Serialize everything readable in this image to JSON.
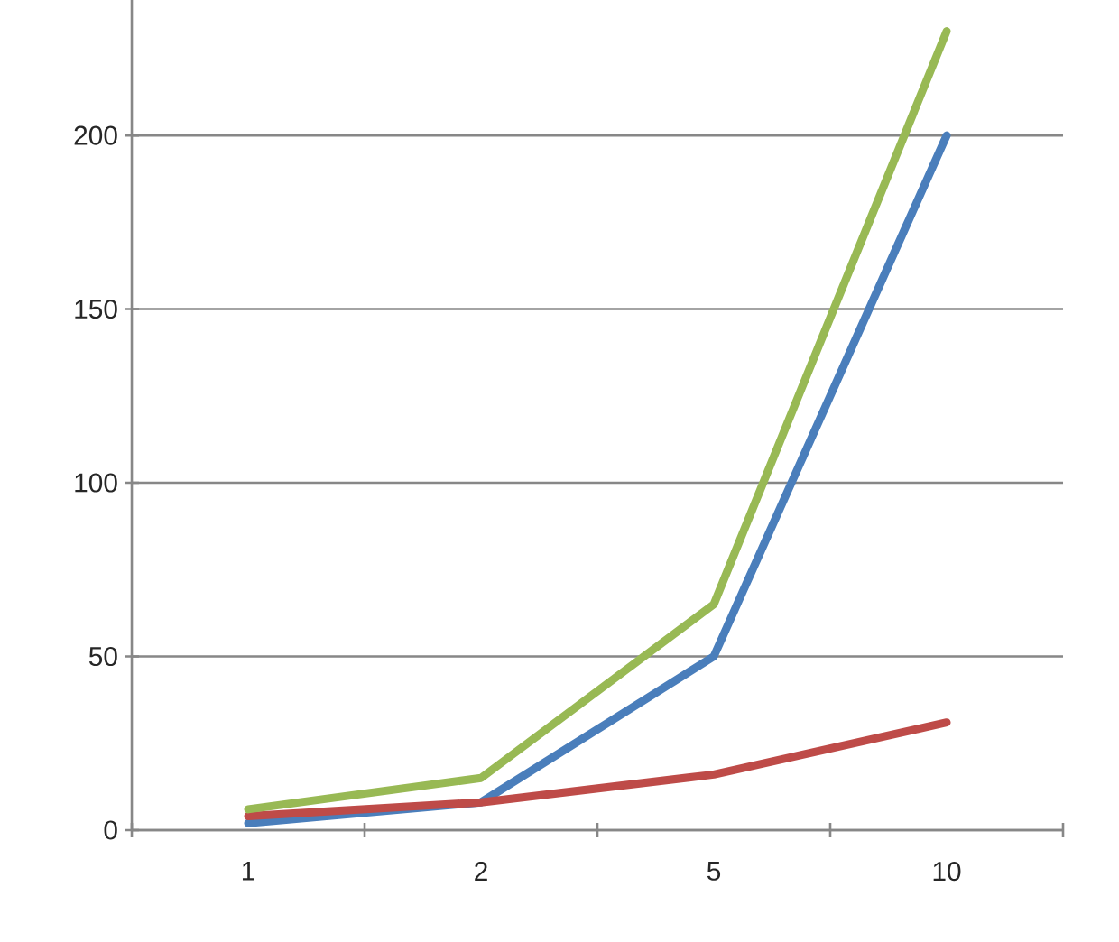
{
  "chart_data": {
    "type": "line",
    "categories": [
      "1",
      "2",
      "5",
      "10"
    ],
    "series": [
      {
        "color": "#4a7ebb",
        "values": [
          2,
          8,
          50,
          200
        ]
      },
      {
        "color": "#be4b48",
        "values": [
          4,
          8,
          16,
          31
        ]
      },
      {
        "color": "#98b954",
        "values": [
          6,
          15,
          65,
          230
        ]
      }
    ],
    "ylim": [
      0,
      239
    ],
    "yticks": [
      0,
      50,
      100,
      150,
      200
    ],
    "grid": "y",
    "marker": "none",
    "line_style": "solid"
  }
}
